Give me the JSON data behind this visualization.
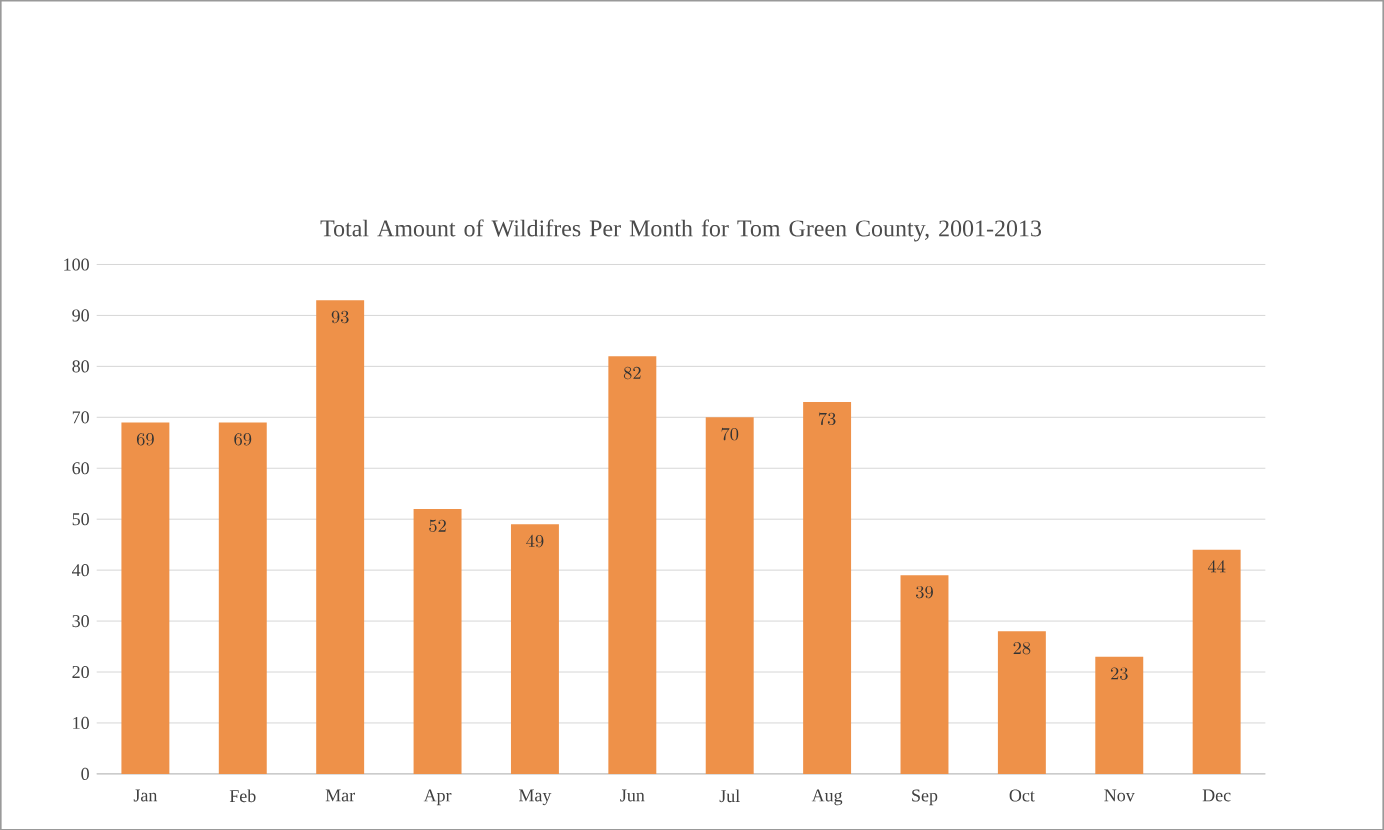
{
  "chart_data": {
    "type": "bar",
    "title": "Total Amount of Wildifres Per Month for Tom Green County, 2001-2013",
    "categories": [
      "Jan",
      "Feb",
      "Mar",
      "Apr",
      "May",
      "Jun",
      "Jul",
      "Aug",
      "Sep",
      "Oct",
      "Nov",
      "Dec"
    ],
    "values": [
      69,
      69,
      93,
      52,
      49,
      82,
      70,
      73,
      39,
      28,
      23,
      44
    ],
    "color": "#ee9149",
    "ylim": [
      0,
      100
    ],
    "yticks": [
      0,
      10,
      20,
      30,
      40,
      50,
      60,
      70,
      80,
      90,
      100
    ],
    "grid": "y",
    "data_labels": true
  }
}
